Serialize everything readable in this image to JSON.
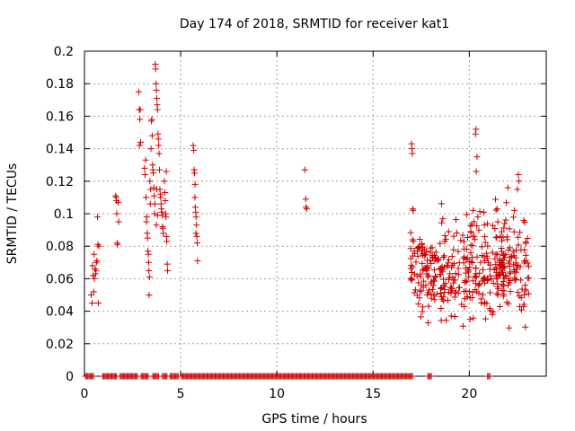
{
  "chart_data": {
    "type": "scatter",
    "title": "Day 174 of 2018, SRMTID for receiver kat1",
    "xlabel": "GPS time / hours",
    "ylabel": "SRMTID / TECUs",
    "xlim": [
      0,
      24
    ],
    "ylim": [
      0,
      0.2
    ],
    "xticks": [
      0,
      5,
      10,
      15,
      20
    ],
    "yticks": [
      0,
      0.02,
      0.04,
      0.06,
      0.08,
      0.1,
      0.12,
      0.14,
      0.16,
      0.18,
      0.2
    ],
    "ytick_labels": [
      "0",
      "0.02",
      "0.04",
      "0.06",
      "0.08",
      "0.1",
      "0.12",
      "0.14",
      "0.16",
      "0.18",
      "0.2"
    ],
    "grid": true,
    "marker": "plus",
    "color": "#cc0000",
    "series": [
      {
        "name": "SRMTID",
        "points": [
          [
            0.35,
            0.05
          ],
          [
            0.4,
            0.045
          ],
          [
            0.42,
            0.068
          ],
          [
            0.45,
            0.062
          ],
          [
            0.5,
            0.075
          ],
          [
            0.52,
            0.06
          ],
          [
            0.55,
            0.066
          ],
          [
            0.58,
            0.063
          ],
          [
            0.6,
            0.065
          ],
          [
            0.62,
            0.07
          ],
          [
            0.65,
            0.071
          ],
          [
            0.68,
            0.098
          ],
          [
            0.7,
            0.081
          ],
          [
            0.72,
            0.045
          ],
          [
            0.75,
            0.08
          ],
          [
            0.48,
            0.052
          ],
          [
            1.62,
            0.111
          ],
          [
            1.65,
            0.11
          ],
          [
            1.68,
            0.1
          ],
          [
            1.7,
            0.082
          ],
          [
            1.72,
            0.081
          ],
          [
            1.75,
            0.107
          ],
          [
            1.78,
            0.095
          ],
          [
            1.66,
            0.108
          ],
          [
            2.82,
            0.175
          ],
          [
            2.85,
            0.164
          ],
          [
            2.88,
            0.158
          ],
          [
            2.9,
            0.164
          ],
          [
            2.92,
            0.144
          ],
          [
            2.86,
            0.142
          ],
          [
            3.12,
            0.128
          ],
          [
            3.15,
            0.124
          ],
          [
            3.18,
            0.133
          ],
          [
            3.2,
            0.11
          ],
          [
            3.22,
            0.095
          ],
          [
            3.24,
            0.098
          ],
          [
            3.26,
            0.088
          ],
          [
            3.28,
            0.085
          ],
          [
            3.3,
            0.077
          ],
          [
            3.32,
            0.075
          ],
          [
            3.34,
            0.07
          ],
          [
            3.35,
            0.065
          ],
          [
            3.36,
            0.05
          ],
          [
            3.38,
            0.061
          ],
          [
            3.4,
            0.12
          ],
          [
            3.42,
            0.106
          ],
          [
            3.44,
            0.115
          ],
          [
            3.46,
            0.14
          ],
          [
            3.48,
            0.157
          ],
          [
            3.5,
            0.158
          ],
          [
            3.52,
            0.148
          ],
          [
            3.54,
            0.13
          ],
          [
            3.56,
            0.127
          ],
          [
            3.58,
            0.125
          ],
          [
            3.6,
            0.116
          ],
          [
            3.62,
            0.111
          ],
          [
            3.64,
            0.1
          ],
          [
            3.66,
            0.106
          ],
          [
            3.68,
            0.192
          ],
          [
            3.7,
            0.189
          ],
          [
            3.72,
            0.18
          ],
          [
            3.74,
            0.176
          ],
          [
            3.76,
            0.171
          ],
          [
            3.78,
            0.167
          ],
          [
            3.8,
            0.164
          ],
          [
            3.82,
            0.149
          ],
          [
            3.84,
            0.146
          ],
          [
            3.86,
            0.142
          ],
          [
            3.88,
            0.137
          ],
          [
            3.9,
            0.127
          ],
          [
            3.92,
            0.115
          ],
          [
            3.94,
            0.112
          ],
          [
            3.96,
            0.11
          ],
          [
            3.98,
            0.106
          ],
          [
            4.0,
            0.103
          ],
          [
            4.02,
            0.101
          ],
          [
            4.04,
            0.099
          ],
          [
            4.06,
            0.092
          ],
          [
            4.08,
            0.091
          ],
          [
            4.1,
            0.088
          ],
          [
            3.74,
            0.093
          ],
          [
            3.76,
            0.115
          ],
          [
            3.8,
            0.099
          ],
          [
            4.15,
            0.12
          ],
          [
            4.18,
            0.113
          ],
          [
            4.2,
            0.108
          ],
          [
            4.22,
            0.1
          ],
          [
            4.24,
            0.098
          ],
          [
            4.26,
            0.086
          ],
          [
            4.28,
            0.083
          ],
          [
            4.3,
            0.069
          ],
          [
            4.32,
            0.065
          ],
          [
            4.25,
            0.126
          ],
          [
            5.65,
            0.142
          ],
          [
            5.68,
            0.139
          ],
          [
            5.7,
            0.127
          ],
          [
            5.72,
            0.125
          ],
          [
            5.74,
            0.11
          ],
          [
            5.76,
            0.104
          ],
          [
            5.78,
            0.101
          ],
          [
            5.8,
            0.098
          ],
          [
            5.82,
            0.093
          ],
          [
            5.84,
            0.086
          ],
          [
            5.86,
            0.082
          ],
          [
            5.88,
            0.071
          ],
          [
            5.75,
            0.118
          ],
          [
            5.79,
            0.088
          ],
          [
            11.45,
            0.127
          ],
          [
            11.5,
            0.109
          ],
          [
            11.52,
            0.104
          ],
          [
            11.55,
            0.103
          ],
          [
            17.0,
            0.143
          ],
          [
            17.02,
            0.14
          ],
          [
            17.04,
            0.137
          ],
          [
            17.06,
            0.103
          ],
          [
            17.08,
            0.102
          ],
          [
            17.05,
            0.084
          ],
          [
            17.1,
            0.083
          ]
        ]
      }
    ],
    "dense_segment": {
      "x_start": 16.95,
      "x_end": 23.1,
      "y_low": 0.02,
      "y_high": 0.125,
      "count": 430
    },
    "dense_peaks": [
      [
        20.35,
        0.152
      ],
      [
        20.32,
        0.149
      ],
      [
        20.4,
        0.135
      ],
      [
        20.36,
        0.126
      ],
      [
        22.55,
        0.124
      ],
      [
        22.58,
        0.12
      ],
      [
        22.5,
        0.115
      ],
      [
        22.0,
        0.116
      ],
      [
        20.2,
        0.102
      ],
      [
        21.45,
        0.103
      ]
    ],
    "zero_segments": [
      [
        0.05,
        0.5
      ],
      [
        0.95,
        1.7
      ],
      [
        1.85,
        2.75
      ],
      [
        2.95,
        3.35
      ],
      [
        3.55,
        3.9
      ],
      [
        4.05,
        4.3
      ],
      [
        4.45,
        4.9
      ],
      [
        5.05,
        17.05
      ],
      [
        17.85,
        18.05
      ],
      [
        20.95,
        21.1
      ]
    ]
  }
}
